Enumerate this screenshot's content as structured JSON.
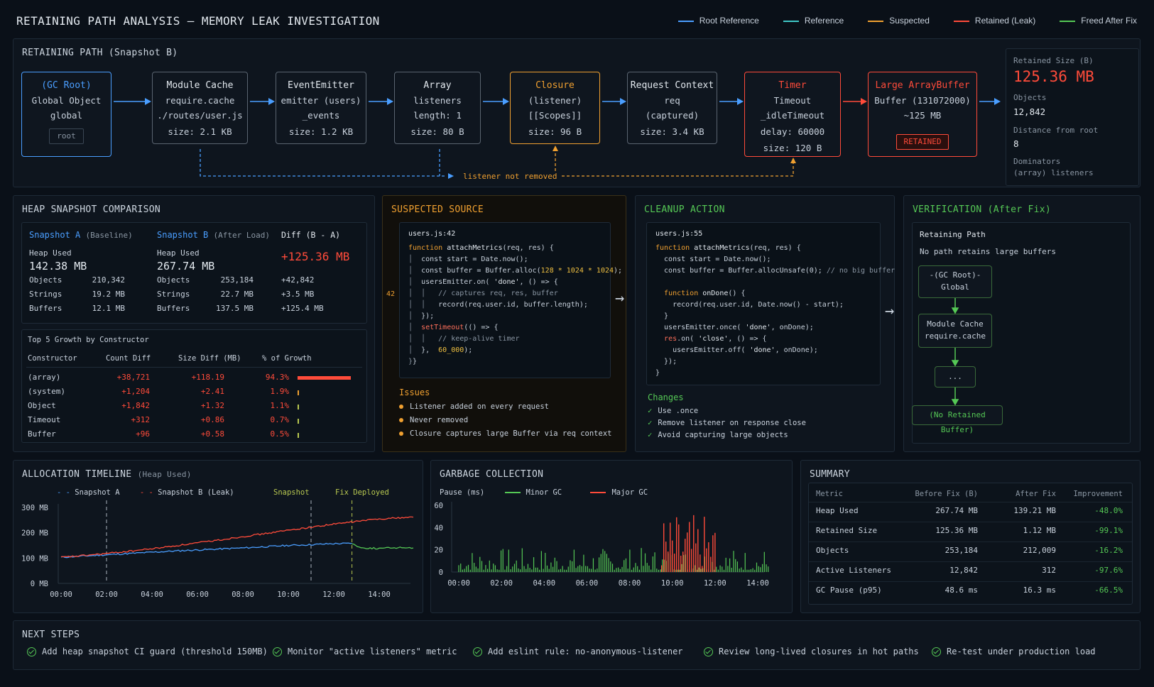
{
  "header": {
    "title": "RETAINING PATH ANALYSIS — MEMORY LEAK INVESTIGATION",
    "legend": [
      {
        "label": "Root Reference",
        "color": "#4a9eff"
      },
      {
        "label": "Reference",
        "color": "#3fc8c8"
      },
      {
        "label": "Suspected",
        "color": "#f0a030"
      },
      {
        "label": "Retained (Leak)",
        "color": "#ff4b3a"
      },
      {
        "label": "Freed After Fix",
        "color": "#55c855"
      }
    ]
  },
  "path": {
    "title": "RETAINING PATH (Snapshot B)",
    "nodes": [
      {
        "title": "(GC Root)",
        "l1": "Global Object",
        "l2": "global",
        "l3": "",
        "badge": "root"
      },
      {
        "title": "Module Cache",
        "l1": "require.cache",
        "l2": "./routes/user.js",
        "l3": "size: 2.1 KB"
      },
      {
        "title": "EventEmitter",
        "l1": "emitter (users)",
        "l2": "_events",
        "l3": "size: 1.2 KB"
      },
      {
        "title": "Array",
        "l1": "listeners",
        "l2": "length: 1",
        "l3": "size: 80 B"
      },
      {
        "title": "Closure",
        "l1": "(listener)",
        "l2": "[[Scopes]]",
        "l3": "size: 96 B"
      },
      {
        "title": "Request Context",
        "l1": "req",
        "l2": "(captured)",
        "l3": "size: 3.4 KB"
      },
      {
        "title": "Timer",
        "l1": "Timeout",
        "l2": "_idleTimeout",
        "l3": "delay: 60000",
        "l4": "size: 120 B"
      },
      {
        "title": "Large ArrayBuffer",
        "l1": "Buffer (131072000)",
        "l2": "~125 MB",
        "badge": "RETAINED"
      }
    ],
    "annotation": "listener not removed",
    "retained": {
      "size_label": "Retained Size (B)",
      "size": "125.36 MB",
      "objects_label": "Objects",
      "objects": "12,842",
      "distance_label": "Distance from root",
      "distance": "8",
      "dominators_label": "Dominators",
      "dominators": "(array) listeners"
    }
  },
  "heap": {
    "title": "HEAP SNAPSHOT COMPARISON",
    "snapA": {
      "name": "Snapshot A",
      "tag": "(Baseline)",
      "heap_label": "Heap Used",
      "heap": "142.38 MB",
      "rows": [
        [
          "Objects",
          "210,342"
        ],
        [
          "Strings",
          "19.2 MB"
        ],
        [
          "Buffers",
          "12.1 MB"
        ]
      ]
    },
    "snapB": {
      "name": "Snapshot B",
      "tag": "(After Load)",
      "heap_label": "Heap Used",
      "heap": "267.74 MB",
      "rows": [
        [
          "Objects",
          "253,184"
        ],
        [
          "Strings",
          "22.7 MB"
        ],
        [
          "Buffers",
          "137.5 MB"
        ]
      ]
    },
    "diff": {
      "name": "Diff (B - A)",
      "heap": "+125.36 MB",
      "rows": [
        "+42,842",
        "+3.5 MB",
        "+125.4 MB"
      ]
    },
    "growth_title": "Top 5 Growth by Constructor",
    "growth_headers": [
      "Constructor",
      "Count Diff",
      "Size Diff (MB)",
      "% of Growth"
    ],
    "growth": [
      {
        "name": "(array)",
        "count": "+38,721",
        "size": "+118.19",
        "pct": "94.3%",
        "frac": 0.943
      },
      {
        "name": "(system)",
        "count": "+1,204",
        "size": "+2.41",
        "pct": "1.9%",
        "frac": 0.019
      },
      {
        "name": "Object",
        "count": "+1,842",
        "size": "+1.32",
        "pct": "1.1%",
        "frac": 0.011
      },
      {
        "name": "Timeout",
        "count": "+312",
        "size": "+0.86",
        "pct": "0.7%",
        "frac": 0.007
      },
      {
        "name": "Buffer",
        "count": "+96",
        "size": "+0.58",
        "pct": "0.5%",
        "frac": 0.005
      }
    ]
  },
  "suspect": {
    "title": "SUSPECTED SOURCE",
    "file": "users.js:42",
    "line_marker": "42",
    "issues_title": "Issues",
    "issues": [
      "Listener added on every request",
      "Never removed",
      "Closure captures large Buffer via req context"
    ]
  },
  "cleanup": {
    "title": "CLEANUP ACTION",
    "file": "users.js:55",
    "changes_title": "Changes",
    "changes": [
      "Use .once",
      "Remove listener on response close",
      "Avoid capturing large objects"
    ]
  },
  "verify": {
    "title": "VERIFICATION (After Fix)",
    "path_title": "Retaining Path",
    "path_note": "No path retains large buffers",
    "n1a": "-(GC Root)-",
    "n1b": "Global",
    "n2a": "Module Cache",
    "n2b": "require.cache",
    "n3": "...",
    "n4": "(No Retained Buffer)"
  },
  "timeline": {
    "title": "ALLOCATION TIMELINE",
    "title_sub": "(Heap Used)",
    "legend_a": "Snapshot A",
    "legend_b": "Snapshot B (Leak)",
    "mark_snapshot": "Snapshot",
    "mark_fix": "Fix Deployed"
  },
  "gc": {
    "title": "GARBAGE COLLECTION",
    "ylabel": "Pause (ms)",
    "legend_minor": "Minor GC",
    "legend_major": "Major GC"
  },
  "summary": {
    "title": "SUMMARY",
    "headers": [
      "Metric",
      "Before Fix (B)",
      "After Fix",
      "Improvement"
    ],
    "rows": [
      [
        "Heap Used",
        "267.74 MB",
        "139.21 MB",
        "-48.0%"
      ],
      [
        "Retained Size",
        "125.36 MB",
        "1.12 MB",
        "-99.1%"
      ],
      [
        "Objects",
        "253,184",
        "212,009",
        "-16.2%"
      ],
      [
        "Active Listeners",
        "12,842",
        "312",
        "-97.6%"
      ],
      [
        "GC Pause (p95)",
        "48.6 ms",
        "16.3 ms",
        "-66.5%"
      ]
    ]
  },
  "next": {
    "title": "NEXT STEPS",
    "items": [
      "Add heap snapshot CI guard (threshold 150MB)",
      "Monitor \"active listeners\" metric",
      "Add eslint rule: no-anonymous-listener",
      "Review long-lived closures in hot paths",
      "Re-test under production load"
    ]
  },
  "chart_data": [
    {
      "type": "line",
      "title": "ALLOCATION TIMELINE",
      "ylabel": "",
      "xlabel": "",
      "x_ticks": [
        "00:00",
        "02:00",
        "04:00",
        "06:00",
        "08:00",
        "10:00",
        "12:00",
        "14:00"
      ],
      "y_ticks": [
        "0 MB",
        "100 MB",
        "200 MB",
        "300 MB"
      ],
      "ylim": [
        0,
        300
      ],
      "xlim_hours": [
        0,
        15.5
      ],
      "markers": [
        {
          "hour": 2.0,
          "label": ""
        },
        {
          "hour": 11.0,
          "label": "Snapshot"
        },
        {
          "hour": 12.8,
          "label": "Fix Deployed"
        }
      ],
      "series": [
        {
          "name": "Snapshot A",
          "color": "#4a9eff",
          "style": "dashed",
          "x": [
            0,
            1,
            2,
            3,
            4,
            5,
            6,
            7,
            8,
            9,
            10,
            11,
            12,
            12.8
          ],
          "y": [
            103,
            108,
            113,
            118,
            123,
            128,
            132,
            136,
            140,
            145,
            150,
            153,
            157,
            158
          ]
        },
        {
          "name": "Snapshot B (Leak)",
          "color": "#ff4b3a",
          "style": "dashed",
          "x": [
            0,
            1,
            2,
            3,
            4,
            5,
            6,
            7,
            8,
            9,
            10,
            11,
            12,
            13,
            14,
            15.5
          ],
          "y": [
            103,
            110,
            118,
            127,
            137,
            148,
            160,
            172,
            185,
            197,
            210,
            222,
            234,
            245,
            255,
            262
          ]
        },
        {
          "name": "",
          "color": "#55c855",
          "style": "solid",
          "x": [
            12.8,
            13.2,
            14,
            15,
            15.5
          ],
          "y": [
            158,
            140,
            138,
            142,
            140
          ]
        }
      ]
    },
    {
      "type": "bar",
      "title": "GARBAGE COLLECTION",
      "ylabel": "Pause (ms)",
      "x_ticks": [
        "00:00",
        "02:00",
        "04:00",
        "06:00",
        "08:00",
        "10:00",
        "12:00",
        "14:00"
      ],
      "y_ticks": [
        "0",
        "20",
        "40",
        "60"
      ],
      "ylim": [
        0,
        60
      ],
      "series": [
        {
          "name": "Minor GC",
          "color": "#55c855",
          "x_range_hours": [
            0,
            14.5
          ],
          "pause_ms_range": [
            2,
            22
          ]
        },
        {
          "name": "Major GC",
          "color": "#ff4b3a",
          "x_range_hours": [
            9.5,
            12.0
          ],
          "pause_ms_range": [
            5,
            52
          ]
        }
      ]
    }
  ]
}
